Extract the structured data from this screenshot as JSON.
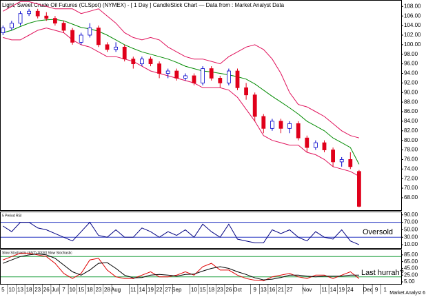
{
  "chart_data": [
    {
      "type": "candlestick",
      "title": "Light, Sweet Crude Oil Futures (CLSpot) (NYMEX) -  [ 1 Day ] CandleStick Chart — Data from : Market Analyst Data",
      "categories": [
        "5",
        "10",
        "13",
        "18",
        "23",
        "26",
        "Jul",
        "7",
        "10",
        "15",
        "18",
        "23",
        "28",
        "Aug",
        null,
        "11",
        "14",
        "19",
        "22",
        "27",
        "Sep",
        null,
        "10",
        "15",
        "18",
        "23",
        "26",
        "Oct",
        null,
        "9",
        "13",
        "16",
        "21",
        "27",
        null,
        "Nov",
        null,
        "11",
        "14",
        "19",
        "24",
        null,
        "Dec",
        "9",
        "1"
      ],
      "open": [
        102.5,
        103.5,
        104.5,
        106.5,
        107,
        106,
        105.5,
        104.5,
        103,
        100.5,
        102,
        103.5,
        100,
        99,
        99.5,
        97,
        96,
        97,
        96,
        94,
        94.5,
        93,
        93.5,
        92,
        95,
        93,
        92,
        94.5,
        91,
        89.5,
        85,
        82.5,
        84,
        82.5,
        83.5,
        80.5,
        78.5,
        79.5,
        78,
        75.5,
        76,
        73.5,
        null,
        null,
        null
      ],
      "high": [
        104,
        105,
        107,
        107.5,
        107.5,
        106.8,
        106,
        105,
        103.5,
        102.5,
        104.5,
        104,
        100.5,
        100.5,
        100,
        97.5,
        97.5,
        97.5,
        96.5,
        95,
        95,
        94,
        94,
        95.5,
        95.5,
        93.5,
        95,
        95,
        92,
        90,
        85.5,
        84.5,
        84.5,
        84,
        84,
        81,
        80,
        80,
        78.5,
        76.5,
        77.5,
        73.8,
        null,
        null,
        null
      ],
      "low": [
        102,
        103,
        104,
        106,
        105.5,
        105,
        104,
        102.5,
        100,
        100,
        101.5,
        99.5,
        98.5,
        98.5,
        96.5,
        95,
        95.5,
        95.5,
        93,
        93,
        92.5,
        92.5,
        91.5,
        91.5,
        92.5,
        91,
        91.5,
        90.5,
        88.5,
        84,
        81.5,
        82,
        81.5,
        81.5,
        80,
        77.5,
        78,
        77.5,
        74.5,
        74.5,
        74,
        66,
        null,
        null,
        null
      ],
      "close": [
        103.5,
        104.5,
        106.5,
        107,
        106,
        105.5,
        104.5,
        103,
        100.5,
        102,
        103.5,
        100,
        99,
        99.5,
        97,
        96,
        97,
        96,
        94,
        94.5,
        93,
        93.5,
        92,
        95,
        93,
        92,
        94.5,
        91,
        89.5,
        85,
        82.5,
        84,
        82.5,
        83.5,
        80.5,
        78.5,
        79.5,
        78,
        75.5,
        76,
        74.5,
        66.2,
        null,
        null,
        null
      ],
      "up_color": "#0000cc",
      "down_color": "#e0001a",
      "overlays": [
        {
          "color": "#e0105a",
          "values": [
            107,
            108,
            109,
            109,
            108.5,
            108,
            107.5,
            107.5,
            107.5,
            106.5,
            107,
            107.5,
            106,
            104.5,
            102.5,
            101.5,
            101,
            101.5,
            101,
            99.5,
            98.5,
            97.5,
            97,
            97,
            96.5,
            96,
            97.5,
            98.5,
            99.5,
            100,
            99,
            97,
            94,
            90,
            87.5,
            87,
            86,
            85,
            83.5,
            82,
            81,
            80.5,
            null,
            null,
            null
          ]
        },
        {
          "color": "#e0105a",
          "values": [
            101.5,
            101,
            101,
            102,
            103,
            103.5,
            103,
            102.5,
            101,
            100,
            99.5,
            98.5,
            97.5,
            97.5,
            97,
            96.5,
            95.5,
            94.5,
            94,
            93.5,
            93,
            92.5,
            92,
            91,
            91,
            91,
            90.5,
            89,
            86.5,
            84,
            81,
            80,
            79.5,
            79,
            79,
            77.5,
            77,
            76,
            74.5,
            74,
            73.5,
            72.5,
            null,
            null,
            null
          ]
        },
        {
          "color": "#008a00",
          "values": [
            102.5,
            103,
            103.8,
            104.5,
            105,
            105.2,
            105.3,
            105,
            104.3,
            103.6,
            103.3,
            102.8,
            102,
            101,
            100,
            99.2,
            98.5,
            98,
            97.5,
            97,
            96.3,
            95.5,
            95,
            94.5,
            94.3,
            94,
            93.7,
            93.3,
            92.8,
            91.8,
            90.5,
            89.2,
            88,
            86.8,
            85.5,
            84,
            83,
            82,
            80.5,
            79.5,
            78.5,
            75,
            null,
            null,
            null
          ]
        }
      ],
      "ylim": [
        65.4,
        109.2
      ],
      "yticks": [
        {
          "value": 108,
          "label": "108.00"
        },
        {
          "value": 106,
          "label": "106.00"
        },
        {
          "value": 104,
          "label": "104.00"
        },
        {
          "value": 102,
          "label": "102.00"
        },
        {
          "value": 100,
          "label": "100.00"
        },
        {
          "value": 98,
          "label": "98.00"
        },
        {
          "value": 96,
          "label": "96.00"
        },
        {
          "value": 94,
          "label": "94.00"
        },
        {
          "value": 92,
          "label": "92.00"
        },
        {
          "value": 90,
          "label": "90.00"
        },
        {
          "value": 88,
          "label": "88.00"
        },
        {
          "value": 86,
          "label": "86.00"
        },
        {
          "value": 84,
          "label": "84.00"
        },
        {
          "value": 82,
          "label": "82.00"
        },
        {
          "value": 80,
          "label": "80.00"
        },
        {
          "value": 78,
          "label": "78.00"
        },
        {
          "value": 76,
          "label": "76.00"
        },
        {
          "value": 74,
          "label": "74.00"
        },
        {
          "value": 72,
          "label": "72.00"
        },
        {
          "value": 70,
          "label": "70.00"
        },
        {
          "value": 68,
          "label": "68.00"
        }
      ]
    },
    {
      "type": "line",
      "title": "5 Period RSI",
      "annotation": "Oversold",
      "series": [
        {
          "color": "#000080",
          "values": [
            60,
            45,
            70,
            70,
            55,
            50,
            40,
            30,
            20,
            45,
            70,
            35,
            30,
            50,
            30,
            30,
            55,
            45,
            30,
            45,
            35,
            50,
            30,
            65,
            45,
            30,
            65,
            25,
            20,
            15,
            15,
            50,
            40,
            50,
            30,
            20,
            45,
            30,
            25,
            50,
            20,
            10,
            null,
            null,
            null
          ]
        }
      ],
      "levels": [
        70,
        30
      ],
      "level_color": "#2030c0",
      "ylim": [
        1,
        97
      ],
      "yticks": [
        {
          "value": 90,
          "label": "90.00"
        },
        {
          "value": 70,
          "label": "70.00"
        },
        {
          "value": 50,
          "label": "50.00"
        },
        {
          "value": 30,
          "label": "30.00"
        },
        {
          "value": 10,
          "label": "10.00"
        }
      ]
    },
    {
      "type": "line",
      "title": "Slow Stochastic (SST) 10/3/3 Slow Stochastic",
      "annotation": "Last hurrah?",
      "series": [
        {
          "color": "#e00000",
          "values": [
            70,
            80,
            90,
            90,
            85,
            80,
            60,
            30,
            15,
            30,
            70,
            75,
            40,
            20,
            15,
            15,
            25,
            35,
            20,
            20,
            25,
            35,
            25,
            50,
            60,
            40,
            40,
            25,
            15,
            10,
            8,
            20,
            25,
            30,
            20,
            15,
            25,
            25,
            15,
            25,
            35,
            15,
            null,
            null,
            null
          ]
        },
        {
          "color": "#000000",
          "values": [
            60,
            70,
            80,
            85,
            88,
            85,
            75,
            55,
            35,
            25,
            40,
            60,
            62,
            45,
            25,
            17,
            18,
            25,
            27,
            25,
            22,
            27,
            28,
            37,
            45,
            50,
            45,
            35,
            27,
            17,
            11,
            13,
            18,
            25,
            25,
            22,
            20,
            22,
            22,
            22,
            25,
            25,
            null,
            null,
            null
          ]
        }
      ],
      "levels": [
        80,
        20
      ],
      "level_color": "#20a040",
      "ylim": [
        -1,
        99
      ],
      "yticks": [
        {
          "value": 85,
          "label": "85.00"
        },
        {
          "value": 65,
          "label": "65.00"
        },
        {
          "value": 45,
          "label": "45.00"
        },
        {
          "value": 25,
          "label": "25.00"
        },
        {
          "value": 5,
          "label": "5.00"
        }
      ]
    }
  ],
  "footer": "Market Analyst 6"
}
